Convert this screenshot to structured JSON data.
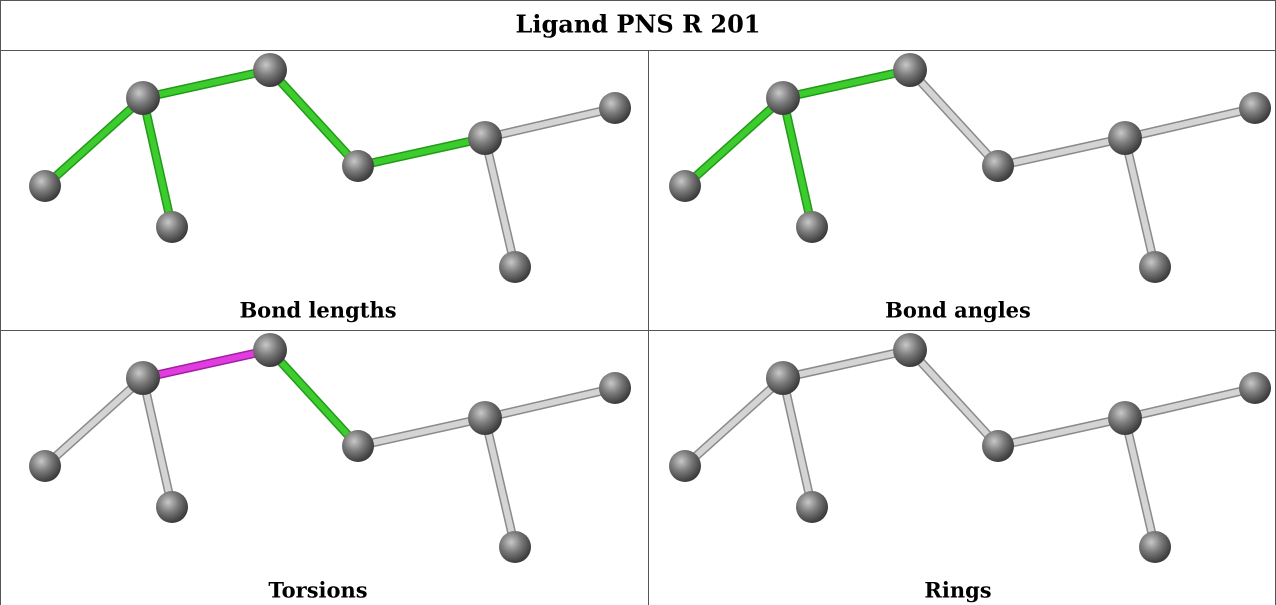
{
  "title": "Ligand PNS R 201",
  "panels": [
    {
      "label": "Bond lengths"
    },
    {
      "label": "Bond angles"
    },
    {
      "label": "Torsions"
    },
    {
      "label": "Rings"
    }
  ]
}
